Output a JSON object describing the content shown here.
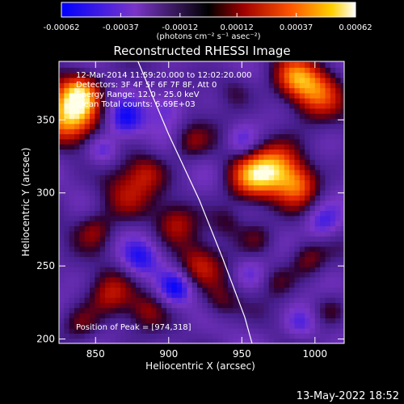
{
  "chart_data": {
    "type": "heatmap",
    "title": "Reconstructed RHESSI Image",
    "xlabel": "Heliocentric X (arcsec)",
    "ylabel": "Heliocentric Y (arcsec)",
    "xlim": [
      825,
      1020
    ],
    "ylim": [
      197,
      390
    ],
    "xticks": [
      850,
      900,
      950,
      1000
    ],
    "yticks": [
      200,
      250,
      300,
      350
    ],
    "colorbar": {
      "range": [
        -0.00062,
        0.00062
      ],
      "tick_labels": [
        "-0.00062",
        "-0.00037",
        "-0.00012",
        "0.00012",
        "0.00037",
        "0.00062"
      ],
      "tick_values": [
        -0.00062,
        -0.00037,
        -0.00012,
        0.00012,
        0.00037,
        0.00062
      ],
      "units_label": "(photons cm⁻² s⁻¹ asec⁻²)"
    },
    "annotations": [
      "12-Mar-2014 11:59:20.000 to 12:02:20.000",
      "Detectors: 3F 4F 5F 6F 7F 8F, Att 0",
      "Energy Range: 12.0 - 25.0 keV",
      "Clean      Total counts: 6.69E+03"
    ],
    "peak_label": "Position of Peak = [974,318]",
    "peak": [
      974,
      318
    ],
    "limb_curve": [
      [
        879,
        390
      ],
      [
        900,
        340
      ],
      [
        921,
        295
      ],
      [
        937,
        255
      ],
      [
        952,
        215
      ],
      [
        957,
        197
      ]
    ],
    "sources": [
      {
        "x": 832,
        "y": 352,
        "v": 1.0,
        "r": 14
      },
      {
        "x": 840,
        "y": 370,
        "v": 0.8,
        "r": 10
      },
      {
        "x": 975,
        "y": 318,
        "v": 0.9,
        "r": 13
      },
      {
        "x": 955,
        "y": 310,
        "v": 0.75,
        "r": 12
      },
      {
        "x": 990,
        "y": 305,
        "v": 0.6,
        "r": 10
      },
      {
        "x": 1000,
        "y": 370,
        "v": 0.8,
        "r": 13
      },
      {
        "x": 985,
        "y": 380,
        "v": 0.55,
        "r": 10
      },
      {
        "x": 915,
        "y": 335,
        "v": 0.45,
        "r": 9
      },
      {
        "x": 870,
        "y": 300,
        "v": 0.5,
        "r": 14
      },
      {
        "x": 885,
        "y": 315,
        "v": 0.35,
        "r": 9
      },
      {
        "x": 850,
        "y": 275,
        "v": 0.4,
        "r": 9
      },
      {
        "x": 905,
        "y": 280,
        "v": 0.45,
        "r": 10
      },
      {
        "x": 920,
        "y": 250,
        "v": 0.55,
        "r": 11
      },
      {
        "x": 940,
        "y": 280,
        "v": 0.3,
        "r": 8
      },
      {
        "x": 960,
        "y": 270,
        "v": 0.35,
        "r": 9
      },
      {
        "x": 995,
        "y": 255,
        "v": 0.45,
        "r": 9
      },
      {
        "x": 975,
        "y": 240,
        "v": 0.3,
        "r": 8
      },
      {
        "x": 860,
        "y": 230,
        "v": 0.5,
        "r": 11
      },
      {
        "x": 885,
        "y": 220,
        "v": 0.35,
        "r": 9
      },
      {
        "x": 840,
        "y": 210,
        "v": 0.4,
        "r": 9
      },
      {
        "x": 935,
        "y": 225,
        "v": 0.4,
        "r": 9
      },
      {
        "x": 945,
        "y": 370,
        "v": 0.3,
        "r": 9
      },
      {
        "x": 1010,
        "y": 220,
        "v": 0.3,
        "r": 8
      },
      {
        "x": 870,
        "y": 350,
        "v": -0.6,
        "r": 9
      },
      {
        "x": 855,
        "y": 330,
        "v": -0.5,
        "r": 8
      },
      {
        "x": 900,
        "y": 360,
        "v": -0.4,
        "r": 9
      },
      {
        "x": 880,
        "y": 255,
        "v": -0.5,
        "r": 9
      },
      {
        "x": 905,
        "y": 235,
        "v": -0.6,
        "r": 8
      },
      {
        "x": 950,
        "y": 335,
        "v": -0.45,
        "r": 8
      },
      {
        "x": 1005,
        "y": 280,
        "v": -0.5,
        "r": 9
      },
      {
        "x": 955,
        "y": 245,
        "v": -0.3,
        "r": 8
      },
      {
        "x": 990,
        "y": 210,
        "v": -0.4,
        "r": 8
      }
    ]
  },
  "footer": {
    "timestamp": "13-May-2022 18:52"
  }
}
